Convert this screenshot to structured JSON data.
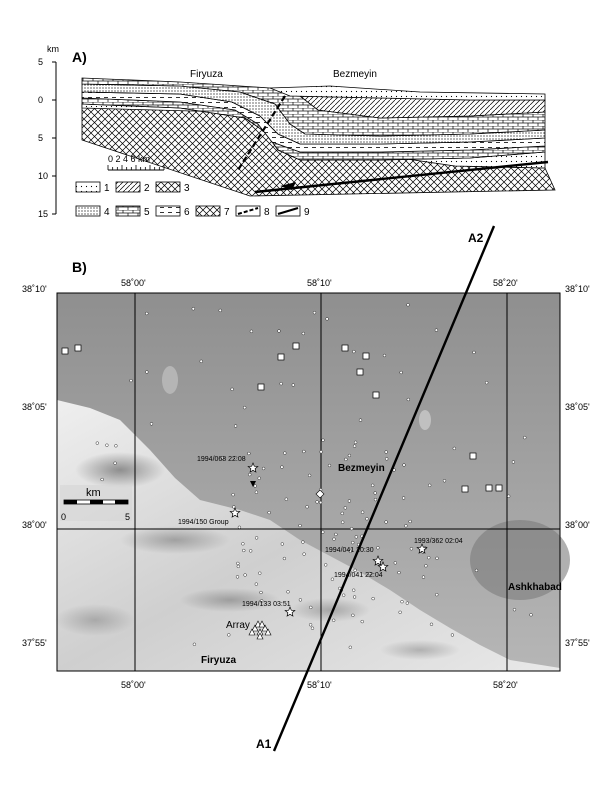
{
  "panel_a": {
    "label": "A)",
    "depth_unit": "km",
    "depth_ticks": [
      "5",
      "0",
      "5",
      "10",
      "15"
    ],
    "places": [
      "Firyuza",
      "Bezmeyin"
    ],
    "scale_ticks": "0 2 4 6 km",
    "legend": [
      "1",
      "2",
      "3",
      "4",
      "5",
      "6",
      "7",
      "8",
      "9"
    ]
  },
  "panel_b": {
    "label": "B)",
    "lat_labels": [
      "38˚10'",
      "38˚05'",
      "38˚00'",
      "37˚55'"
    ],
    "lon_labels": [
      "58˚00'",
      "58˚10'",
      "58˚20'"
    ],
    "places": {
      "bezmeyin": "Bezmeyin",
      "firyuza": "Firyuza",
      "ashkhabad": "Ashkhabad",
      "array": "Array"
    },
    "scale": {
      "unit": "km",
      "zero": "0",
      "max": "5"
    },
    "events": [
      {
        "label": "1994/068 22:08"
      },
      {
        "label": "1994/150 Group"
      },
      {
        "label": "1994/041 20:30"
      },
      {
        "label": "1994/041 22:04"
      },
      {
        "label": "1993/362 02:04"
      },
      {
        "label": "1994/133 03:51"
      }
    ],
    "profile_line": {
      "start": "A1",
      "end": "A2"
    }
  }
}
